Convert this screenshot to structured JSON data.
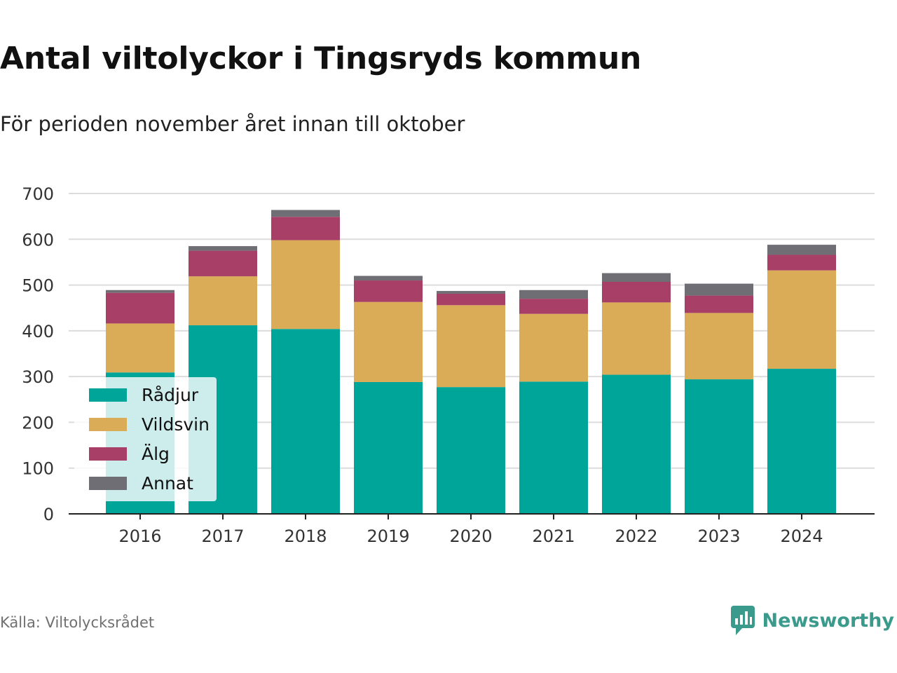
{
  "title": "Antal viltolyckor i Tingsryds kommun",
  "subtitle": "För perioden november året innan till oktober",
  "source": "Källa: Viltolycksrådet",
  "brand": {
    "name": "Newsworthy",
    "icon": "newsworthy-logo-icon",
    "color": "#3a9a8c"
  },
  "chart_data": {
    "type": "bar",
    "stacked": true,
    "categories": [
      "2016",
      "2017",
      "2018",
      "2019",
      "2020",
      "2021",
      "2022",
      "2023",
      "2024"
    ],
    "ylim": [
      0,
      700
    ],
    "yticks": [
      0,
      100,
      200,
      300,
      400,
      500,
      600,
      700
    ],
    "grid": true,
    "legend_position": "bottom-left",
    "series": [
      {
        "name": "Rådjur",
        "color": "#00a59a",
        "values": [
          309,
          412,
          404,
          288,
          277,
          289,
          304,
          294,
          317
        ]
      },
      {
        "name": "Vildsvin",
        "color": "#dbac58",
        "values": [
          107,
          107,
          194,
          175,
          179,
          148,
          158,
          145,
          215
        ]
      },
      {
        "name": "Älg",
        "color": "#a73f66",
        "values": [
          67,
          56,
          51,
          47,
          25,
          33,
          45,
          38,
          34
        ]
      },
      {
        "name": "Annat",
        "color": "#6f6e75",
        "values": [
          6,
          10,
          15,
          10,
          6,
          19,
          19,
          26,
          22
        ]
      }
    ]
  }
}
